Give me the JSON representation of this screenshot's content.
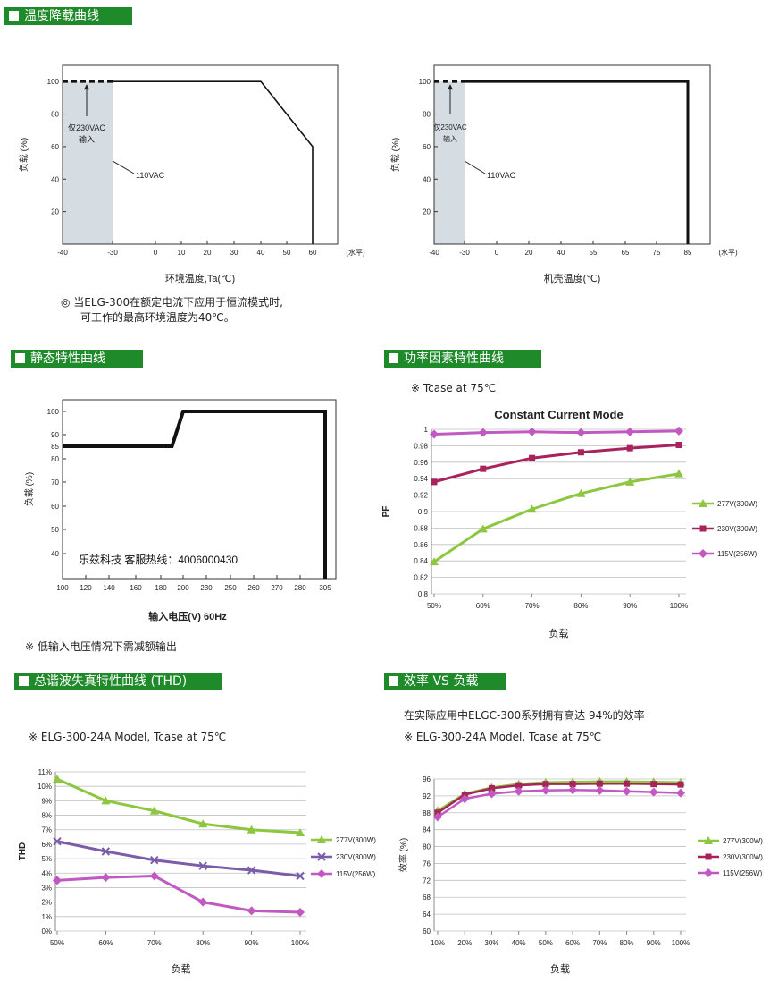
{
  "sections": {
    "derating": "温度降载曲线",
    "static": "静态特性曲线",
    "pf": "功率因素特性曲线",
    "thd": "总谐波失真特性曲线 (THD)",
    "eff": "效率 VS 负载"
  },
  "notes": {
    "derating_line1": "◎ 当ELG-300在额定电流下应用于恒流模式时,",
    "derating_line2": "可工作的最高环境温度为40℃。",
    "static_note": "※ 低输入电压情况下需减额输出",
    "pf_tcase": "※ Tcase at 75℃",
    "eff_intro": "在实际应用中ELGC-300系列拥有高达 94%的效率",
    "thd_model": "※ ELG-300-24A Model, Tcase at 75℃",
    "eff_model": "※ ELG-300-24A Model, Tcase at 75℃"
  },
  "chart_data": [
    {
      "id": "derating1",
      "type": "line",
      "x_ticks": [
        "-40",
        "-30",
        "0",
        "10",
        "20",
        "30",
        "40",
        "50",
        "60"
      ],
      "x_unit": "(水平)",
      "y_ticks": [
        "20",
        "40",
        "60",
        "80",
        "100"
      ],
      "xlabel": "环境温度,Ta(℃)",
      "ylabel": "负载 (%)",
      "x": [
        -30,
        40,
        60,
        60
      ],
      "y": [
        100,
        100,
        60,
        0
      ],
      "dashed_x": [
        -40,
        -30
      ],
      "dashed_y": [
        100,
        100
      ],
      "shaded_region": [
        -40,
        -30
      ],
      "annotation_230": "仅230VAC",
      "annotation_230b": "输入",
      "annotation_110": "110VAC"
    },
    {
      "id": "derating2",
      "type": "line",
      "x_ticks": [
        "-40",
        "-30",
        "0",
        "20",
        "40",
        "55",
        "65",
        "75",
        "85"
      ],
      "x_unit": "(水平)",
      "y_ticks": [
        "20",
        "40",
        "60",
        "80",
        "100"
      ],
      "xlabel": "机壳温度(℃)",
      "ylabel": "负载 (%)",
      "x": [
        -30,
        85,
        85
      ],
      "y": [
        100,
        100,
        0
      ],
      "dashed_x": [
        -40,
        -30
      ],
      "dashed_y": [
        100,
        100
      ],
      "shaded_region": [
        -40,
        -30
      ],
      "annotation_230": "仅230VAC",
      "annotation_230b": "输入",
      "annotation_110": "110VAC"
    },
    {
      "id": "static",
      "type": "line",
      "x_ticks": [
        "100",
        "120",
        "140",
        "160",
        "180",
        "200",
        "230",
        "250",
        "260",
        "270",
        "280",
        "305"
      ],
      "y_ticks": [
        "40",
        "50",
        "60",
        "70",
        "80",
        "85",
        "90",
        "100"
      ],
      "xlabel": "输入电压(V) 60Hz",
      "ylabel": "负载 (%)",
      "x": [
        100,
        190,
        200,
        305,
        305
      ],
      "y": [
        85,
        85,
        100,
        100,
        30
      ],
      "overlay_text": "乐兹科技 客服热线：4006000430"
    },
    {
      "id": "pf",
      "type": "line",
      "title": "Constant Current Mode",
      "categories": [
        "50%",
        "60%",
        "70%",
        "80%",
        "90%",
        "100%"
      ],
      "y_ticks": [
        "0.8",
        "0.82",
        "0.84",
        "0.86",
        "0.88",
        "0.9",
        "0.92",
        "0.94",
        "0.96",
        "0.98",
        "1"
      ],
      "ylim": [
        0.8,
        1.0
      ],
      "xlabel": "负载",
      "ylabel": "PF",
      "series": [
        {
          "name": "277V(300W)",
          "color": "#8dc63f",
          "marker": "triangle",
          "values": [
            0.839,
            0.879,
            0.903,
            0.922,
            0.936,
            0.946
          ]
        },
        {
          "name": "230V(300W)",
          "color": "#a8235c",
          "marker": "square",
          "values": [
            0.936,
            0.952,
            0.965,
            0.972,
            0.977,
            0.981
          ]
        },
        {
          "name": "115V(256W)",
          "color": "#c259c2",
          "marker": "diamond",
          "values": [
            0.994,
            0.996,
            0.997,
            0.996,
            0.997,
            0.998
          ]
        }
      ]
    },
    {
      "id": "thd",
      "type": "line",
      "categories": [
        "50%",
        "60%",
        "70%",
        "80%",
        "90%",
        "100%"
      ],
      "y_ticks": [
        "0%",
        "1%",
        "2%",
        "3%",
        "4%",
        "5%",
        "6%",
        "7%",
        "8%",
        "9%",
        "10%",
        "11%"
      ],
      "ylim": [
        0,
        11
      ],
      "xlabel": "负载",
      "ylabel": "THD",
      "series": [
        {
          "name": "277V(300W)",
          "color": "#8dc63f",
          "marker": "triangle",
          "values": [
            10.5,
            9.0,
            8.3,
            7.4,
            7.0,
            6.8
          ]
        },
        {
          "name": "230V(300W)",
          "color": "#7b5ca8",
          "marker": "x",
          "values": [
            6.2,
            5.5,
            4.9,
            4.5,
            4.2,
            3.8
          ]
        },
        {
          "name": "115V(256W)",
          "color": "#c259c2",
          "marker": "diamond",
          "values": [
            3.5,
            3.7,
            3.8,
            2.0,
            1.4,
            1.3
          ]
        }
      ]
    },
    {
      "id": "eff",
      "type": "line",
      "categories": [
        "10%",
        "20%",
        "30%",
        "40%",
        "50%",
        "60%",
        "70%",
        "80%",
        "90%",
        "100%"
      ],
      "y_ticks": [
        "60",
        "64",
        "68",
        "72",
        "76",
        "80",
        "84",
        "88",
        "92",
        "96"
      ],
      "ylim": [
        60,
        96
      ],
      "xlabel": "负载",
      "ylabel": "效率 (%)",
      "series": [
        {
          "name": "277V(300W)",
          "color": "#8dc63f",
          "marker": "triangle",
          "values": [
            88.5,
            92.5,
            94.0,
            94.8,
            95.2,
            95.3,
            95.4,
            95.4,
            95.3,
            95.2
          ]
        },
        {
          "name": "230V(300W)",
          "color": "#a8235c",
          "marker": "square",
          "values": [
            88.0,
            92.3,
            93.8,
            94.5,
            94.8,
            94.8,
            94.9,
            94.9,
            94.8,
            94.7
          ]
        },
        {
          "name": "115V(256W)",
          "color": "#c259c2",
          "marker": "diamond",
          "values": [
            87.0,
            91.3,
            92.5,
            93.1,
            93.3,
            93.4,
            93.3,
            93.1,
            92.9,
            92.7
          ]
        }
      ]
    }
  ]
}
